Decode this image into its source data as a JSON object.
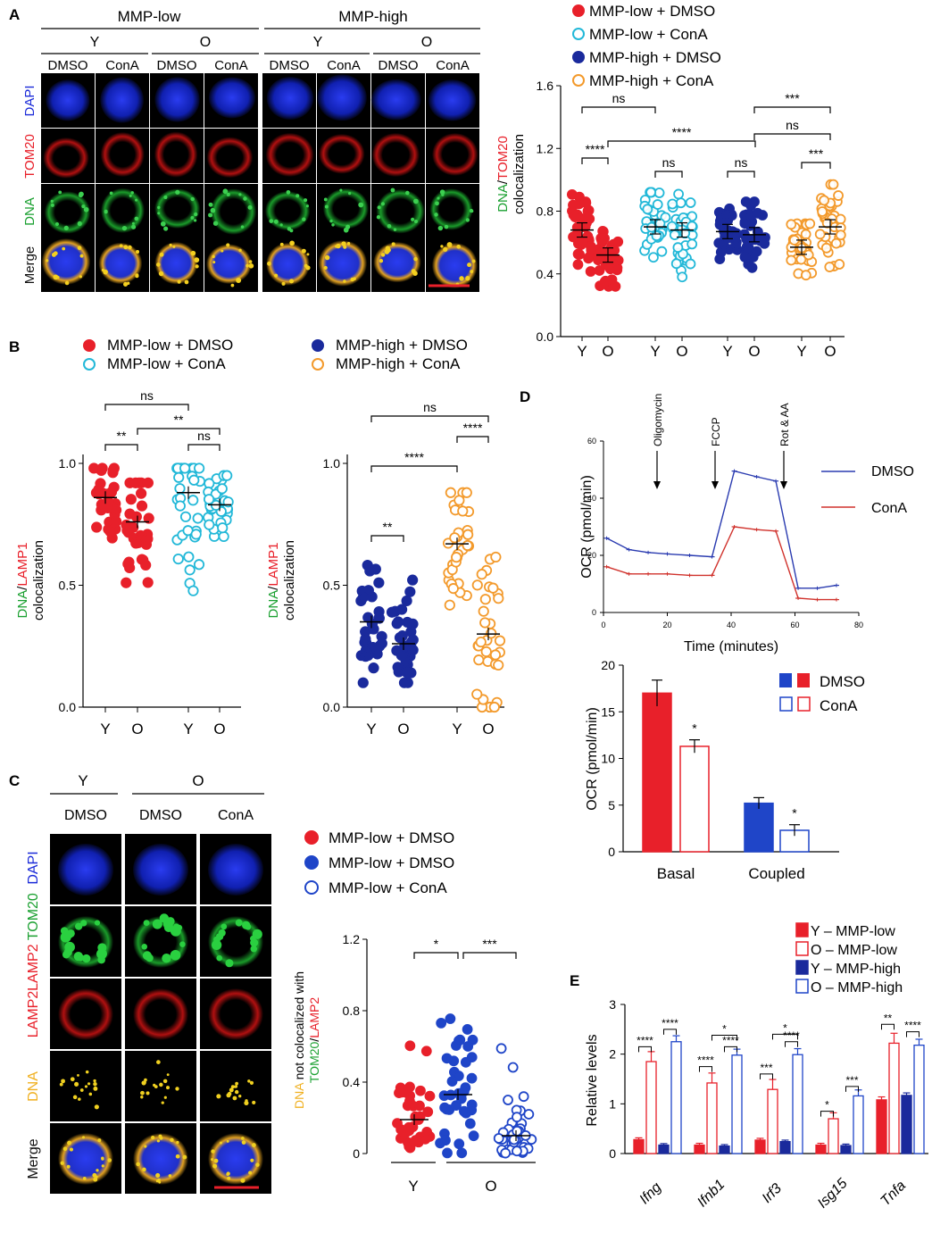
{
  "panels": {
    "A": {
      "label": "A",
      "groups": [
        {
          "name": "MMP-low"
        },
        {
          "name": "MMP-high"
        }
      ],
      "ages": [
        "Y",
        "O",
        "Y",
        "O"
      ],
      "treatments": [
        "DMSO",
        "ConA",
        "DMSO",
        "ConA",
        "DMSO",
        "ConA",
        "DMSO",
        "ConA"
      ],
      "rows": [
        "DAPI",
        "TOM20",
        "DNA",
        "Merge"
      ],
      "legend": [
        "MMP-low + DMSO",
        "MMP-low + ConA",
        "MMP-high + DMSO",
        "MMP-high + ConA"
      ],
      "ylabel_1": "DNA",
      "ylabel_slash": "/",
      "ylabel_2": "TOM20",
      "ylabel_3": "colocalization",
      "brackets": [
        "ns",
        "****",
        "****",
        "ns",
        "ns",
        "***",
        "ns",
        "***"
      ]
    },
    "B": {
      "label": "B",
      "legend_left": [
        "MMP-low + DMSO",
        "MMP-low + ConA"
      ],
      "legend_right": [
        "MMP-high + DMSO",
        "MMP-high + ConA"
      ],
      "ylabel_1": "DNA",
      "ylabel_slash": "/",
      "ylabel_2": "LAMP1",
      "ylabel_3": "colocalization",
      "brackets_left": [
        "ns",
        "**",
        "**",
        "ns"
      ],
      "brackets_right": [
        "ns",
        "****",
        "****",
        "**"
      ]
    },
    "C": {
      "label": "C",
      "ages": [
        "Y",
        "O"
      ],
      "treatments": [
        "DMSO",
        "DMSO",
        "ConA"
      ],
      "rows": [
        "DAPI",
        "LAMP2",
        "TOM20",
        "LAMP2",
        "DNA",
        "Merge"
      ],
      "legend": [
        "MMP-low + DMSO",
        "MMP-low + DMSO",
        "MMP-low + ConA"
      ],
      "ylabel_1": "DNA",
      "ylabel_2": " not colocalized with",
      "ylabel_3": "TOM20",
      "ylabel_slash": "/",
      "ylabel_4": "LAMP2",
      "brackets": [
        "*",
        "***"
      ]
    },
    "D": {
      "label": "D",
      "annotations": [
        "Oligomycin",
        "FCCP",
        "Rot & AA"
      ],
      "legend": [
        "DMSO",
        "ConA"
      ],
      "bar_legend": [
        "DMSO",
        "ConA"
      ],
      "bar_stars": [
        "*",
        "*"
      ]
    },
    "E": {
      "label": "E",
      "legend": [
        "Y – MMP-low",
        "O – MMP-low",
        "Y – MMP-high",
        "O – MMP-high"
      ],
      "stars": [
        [
          "****",
          "****"
        ],
        [
          "****",
          "****",
          "*"
        ],
        [
          "***",
          "****",
          "*"
        ],
        [
          "*",
          "***"
        ],
        [
          "**",
          "****"
        ]
      ]
    }
  },
  "colors": {
    "red": "#e8202a",
    "cyan": "#22b8d8",
    "navy": "#1a2a9c",
    "orange": "#f39a2c",
    "blue": "#1f45c8",
    "ocr_dmso": "#2a3bb0",
    "ocr_cona": "#d0322c"
  },
  "chart_data": [
    {
      "id": "A-scatter",
      "type": "scatter",
      "ylabel": "DNA/TOM20 colocalization",
      "ylim": [
        0.0,
        1.6
      ],
      "yticks": [
        "0.0",
        "0.4",
        "0.8",
        "1.2",
        "1.6"
      ],
      "categories": [
        "Y",
        "O",
        "Y",
        "O",
        "Y",
        "O",
        "Y",
        "O"
      ],
      "series": [
        {
          "name": "MMP-low + DMSO",
          "means": [
            0.68,
            0.52
          ]
        },
        {
          "name": "MMP-low + ConA",
          "means": [
            0.7,
            0.68
          ]
        },
        {
          "name": "MMP-high + DMSO",
          "means": [
            0.67,
            0.65
          ]
        },
        {
          "name": "MMP-high + ConA",
          "means": [
            0.57,
            0.7
          ]
        }
      ]
    },
    {
      "id": "B-left",
      "type": "scatter",
      "ylabel": "DNA/LAMP1 colocalization",
      "ylim": [
        0.0,
        1.0
      ],
      "yticks": [
        "0.0",
        "0.5",
        "1.0"
      ],
      "categories": [
        "Y",
        "O",
        "Y",
        "O"
      ],
      "series": [
        {
          "name": "MMP-low + DMSO",
          "means": [
            0.86,
            0.76
          ]
        },
        {
          "name": "MMP-low + ConA",
          "means": [
            0.88,
            0.83
          ]
        }
      ]
    },
    {
      "id": "B-right",
      "type": "scatter",
      "ylabel": "DNA/LAMP1 colocalization",
      "ylim": [
        0.0,
        1.0
      ],
      "yticks": [
        "0.0",
        "0.5",
        "1.0"
      ],
      "categories": [
        "Y",
        "O",
        "Y",
        "O"
      ],
      "series": [
        {
          "name": "MMP-high + DMSO",
          "means": [
            0.35,
            0.26
          ]
        },
        {
          "name": "MMP-high + ConA",
          "means": [
            0.67,
            0.3
          ]
        }
      ]
    },
    {
      "id": "C-scatter",
      "type": "scatter",
      "ylabel": "DNA not colocalized with TOM20/LAMP2",
      "ylim": [
        0,
        1.2
      ],
      "yticks": [
        "0",
        "0.4",
        "0.8",
        "1.2"
      ],
      "categories": [
        "Y",
        "O"
      ],
      "series": [
        {
          "name": "MMP-low + DMSO (Y)",
          "mean": 0.19
        },
        {
          "name": "MMP-low + DMSO (O)",
          "mean": 0.33
        },
        {
          "name": "MMP-low + ConA (O)",
          "mean": 0.1
        }
      ]
    },
    {
      "id": "D-line",
      "type": "line",
      "xlabel": "Time (minutes)",
      "ylabel": "OCR (pmol/min)",
      "xlim": [
        0,
        80
      ],
      "ylim": [
        0,
        60
      ],
      "xticks": [
        "0",
        "20",
        "40",
        "60",
        "80"
      ],
      "yticks": [
        "0",
        "20",
        "40",
        "60"
      ],
      "x": [
        1,
        8,
        14,
        20,
        27,
        34,
        41,
        48,
        54,
        61,
        67,
        73
      ],
      "series": [
        {
          "name": "DMSO",
          "values": [
            26,
            22,
            21,
            20.5,
            20,
            19.5,
            49.5,
            47.5,
            46,
            8.5,
            8.5,
            9.5
          ]
        },
        {
          "name": "ConA",
          "values": [
            16,
            13.5,
            13.5,
            13.5,
            13,
            13,
            30,
            29,
            28.5,
            5,
            4.5,
            4.5
          ]
        }
      ]
    },
    {
      "id": "D-bar",
      "type": "bar",
      "ylabel": "OCR (pmol/min)",
      "ylim": [
        0,
        20
      ],
      "yticks": [
        "0",
        "5",
        "10",
        "15",
        "20"
      ],
      "categories": [
        "Basal",
        "Coupled"
      ],
      "series": [
        {
          "name": "DMSO",
          "values": [
            17.0,
            5.2
          ],
          "errors": [
            1.4,
            0.6
          ]
        },
        {
          "name": "ConA",
          "values": [
            11.3,
            2.3
          ],
          "errors": [
            0.7,
            0.6
          ]
        }
      ]
    },
    {
      "id": "E-bar",
      "type": "bar",
      "ylabel": "Relative levels",
      "ylim": [
        0,
        3
      ],
      "yticks": [
        "0",
        "1",
        "2",
        "3"
      ],
      "categories": [
        "Ifng",
        "Ifnb1",
        "Irf3",
        "Isg15",
        "Tnfa"
      ],
      "series": [
        {
          "name": "Y – MMP-low",
          "values": [
            0.28,
            0.17,
            0.27,
            0.17,
            1.08
          ]
        },
        {
          "name": "O – MMP-low",
          "values": [
            1.85,
            1.42,
            1.29,
            0.7,
            2.22
          ]
        },
        {
          "name": "Y – MMP-high",
          "values": [
            0.17,
            0.15,
            0.24,
            0.16,
            1.17
          ]
        },
        {
          "name": "O – MMP-high",
          "values": [
            2.25,
            1.98,
            1.99,
            1.16,
            2.18
          ]
        }
      ]
    }
  ]
}
